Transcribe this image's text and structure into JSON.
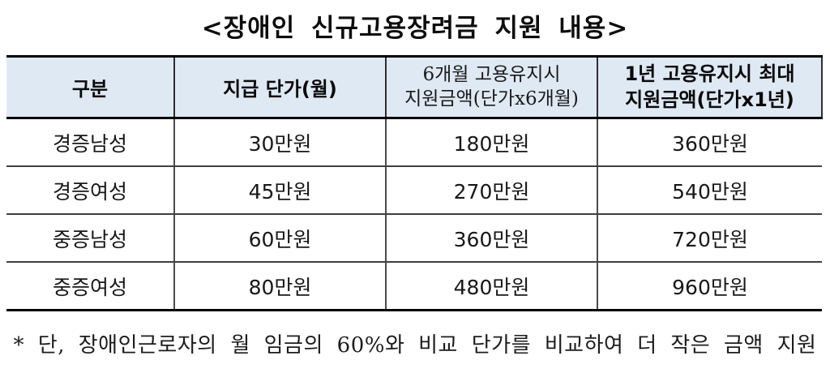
{
  "title": "<장애인 신규고용장려금 지원 내용>",
  "table": {
    "headers": {
      "category": "구분",
      "unit_price": "지급 단가(월)",
      "six_month": {
        "lines": [
          "6개월 고용유지시",
          "지원금액(단가x6개월)"
        ]
      },
      "one_year": {
        "lines": [
          "1년 고용유지시 최대",
          "지원금액(단가x1년)"
        ]
      }
    },
    "rows": [
      [
        "경증남성",
        "30만원",
        "180만원",
        "360만원"
      ],
      [
        "경증여성",
        "45만원",
        "270만원",
        "540만원"
      ],
      [
        "중증남성",
        "60만원",
        "360만원",
        "720만원"
      ],
      [
        "중증여성",
        "80만원",
        "480만원",
        "960만원"
      ]
    ]
  },
  "footnote": "* 단, 장애인근로자의 월 임금의 60%와 비교 단가를 비교하여 더 작은 금액 지원",
  "colors": {
    "header_background": "#dfe9f4",
    "border_heavy": "#000000",
    "border_light": "#4c4c4c",
    "text": "#111111"
  }
}
